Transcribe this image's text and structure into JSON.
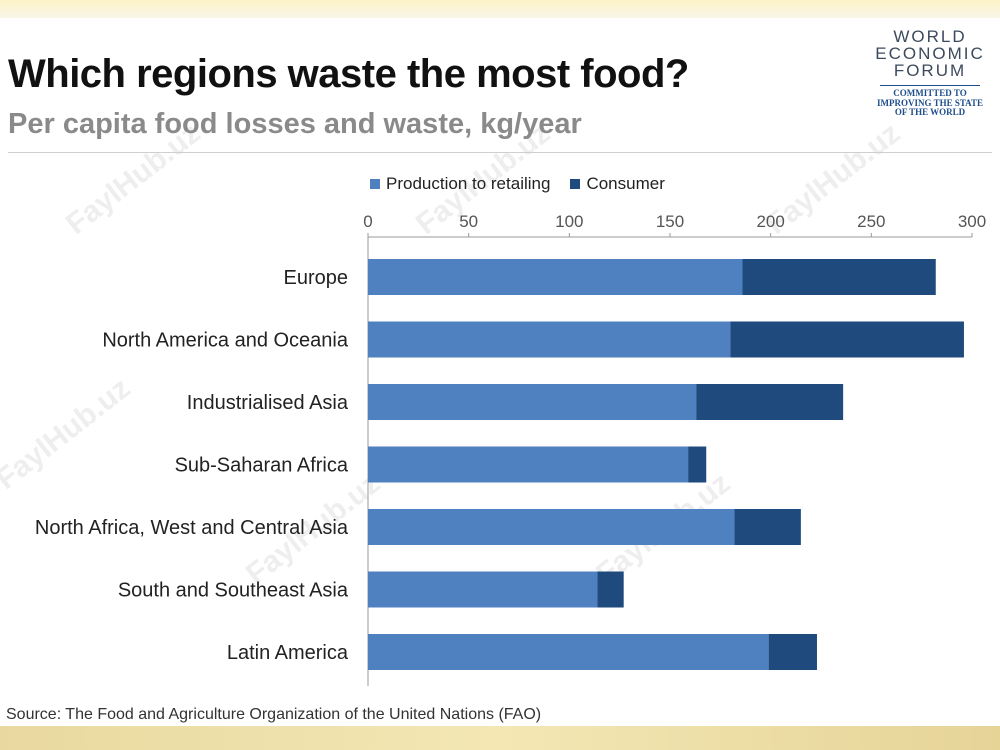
{
  "header": {
    "title": "Which regions waste the most food?",
    "subtitle": "Per capita food losses and waste, kg/year"
  },
  "logo": {
    "line1": "WORLD",
    "line2": "ECONOMIC",
    "line3": "FORUM",
    "tag1": "COMMITTED TO",
    "tag2": "IMPROVING THE STATE",
    "tag3": "OF THE WORLD"
  },
  "watermark": "FaylHub.uz",
  "source": "Source: The Food and Agriculture Organization of the United Nations (FAO)",
  "colors": {
    "production": "#4f81c0",
    "consumer": "#1f4a7e",
    "axis": "#999999",
    "text": "#222222"
  },
  "chart_data": {
    "type": "bar",
    "orientation": "horizontal",
    "stacked": true,
    "categories": [
      "Europe",
      "North America and Oceania",
      "Industrialised Asia",
      "Sub-Saharan Africa",
      "North Africa, West and Central Asia",
      "South and Southeast Asia",
      "Latin America"
    ],
    "series": [
      {
        "name": "Production to retailing",
        "values": [
          186,
          180,
          163,
          159,
          182,
          114,
          199
        ]
      },
      {
        "name": "Consumer",
        "values": [
          96,
          116,
          73,
          9,
          33,
          13,
          24
        ]
      }
    ],
    "title": "Which regions waste the most food?",
    "subtitle": "Per capita food losses and waste, kg/year",
    "xlabel": "",
    "ylabel": "",
    "xlim": [
      0,
      300
    ],
    "xticks": [
      0,
      50,
      100,
      150,
      200,
      250,
      300
    ],
    "axis_position": "top",
    "grid": false,
    "legend": "top"
  }
}
